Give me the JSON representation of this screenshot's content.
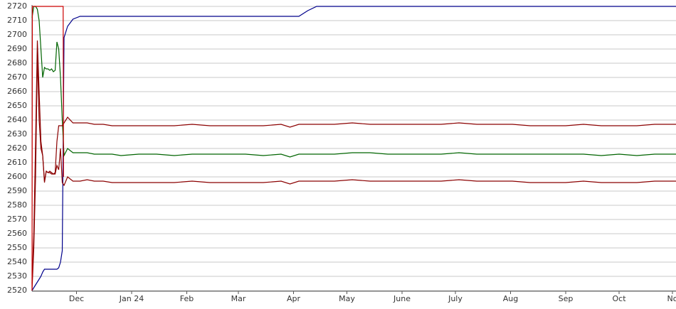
{
  "chart_data": {
    "type": "line",
    "x": [
      0,
      1,
      2,
      3,
      4,
      5,
      6,
      7,
      8,
      9,
      10,
      11,
      12,
      13,
      14,
      15,
      16,
      17,
      18,
      20,
      23,
      27,
      31,
      35,
      40,
      45,
      50,
      60,
      70,
      80,
      90,
      100,
      110,
      120,
      130,
      140,
      145,
      150,
      155,
      160,
      170,
      180,
      190,
      200,
      210,
      220,
      230,
      240,
      250,
      260,
      270,
      280,
      290,
      300,
      310,
      320,
      330,
      340,
      350,
      362
    ],
    "series": [
      {
        "color": "#00008b",
        "values": [
          2520,
          2522,
          2524,
          2526,
          2528,
          2530,
          2533,
          2535,
          2535,
          2535,
          2535,
          2535,
          2535,
          2535,
          2535,
          2536,
          2540,
          2548,
          2698,
          2706,
          2711,
          2713,
          2713,
          2713,
          2713,
          2713,
          2713,
          2713,
          2713,
          2713,
          2713,
          2713,
          2713,
          2713,
          2713,
          2713,
          2713,
          2713,
          2717,
          2720,
          2720,
          2720,
          2720,
          2720,
          2720,
          2720,
          2720,
          2720,
          2720,
          2720,
          2720,
          2720,
          2720,
          2720,
          2720,
          2720,
          2720,
          2720,
          2720,
          2720
        ]
      },
      {
        "color": "#006400",
        "values": [
          2712,
          2720,
          2720,
          2718,
          2710,
          2690,
          2670,
          2677,
          2676,
          2676,
          2675,
          2676,
          2674,
          2675,
          2695,
          2690,
          2670,
          2640,
          2615,
          2620,
          2617,
          2617,
          2617,
          2616,
          2616,
          2616,
          2615,
          2616,
          2616,
          2615,
          2616,
          2616,
          2616,
          2616,
          2615,
          2616,
          2614,
          2616,
          2616,
          2616,
          2616,
          2617,
          2617,
          2616,
          2616,
          2616,
          2616,
          2617,
          2616,
          2616,
          2616,
          2616,
          2616,
          2616,
          2616,
          2615,
          2616,
          2615,
          2616,
          2616
        ]
      },
      {
        "color": "#8b0000",
        "values": [
          2525,
          2560,
          2625,
          2696,
          2660,
          2625,
          2615,
          2596,
          2604,
          2603,
          2604,
          2603,
          2602,
          2603,
          2625,
          2636,
          2636,
          2636,
          2638,
          2642,
          2638,
          2638,
          2638,
          2637,
          2637,
          2636,
          2636,
          2636,
          2636,
          2636,
          2637,
          2636,
          2636,
          2636,
          2636,
          2637,
          2635,
          2637,
          2637,
          2637,
          2637,
          2638,
          2637,
          2637,
          2637,
          2637,
          2637,
          2638,
          2637,
          2637,
          2637,
          2636,
          2636,
          2636,
          2637,
          2636,
          2636,
          2636,
          2637,
          2637
        ]
      },
      {
        "color": "#8b0000",
        "values": [
          2520,
          2550,
          2600,
          2686,
          2640,
          2620,
          2615,
          2597,
          2604,
          2603,
          2603,
          2602,
          2602,
          2602,
          2608,
          2605,
          2620,
          2596,
          2594,
          2600,
          2597,
          2597,
          2598,
          2597,
          2597,
          2596,
          2596,
          2596,
          2596,
          2596,
          2597,
          2596,
          2596,
          2596,
          2596,
          2597,
          2595,
          2597,
          2597,
          2597,
          2597,
          2598,
          2597,
          2597,
          2597,
          2597,
          2597,
          2598,
          2597,
          2597,
          2597,
          2596,
          2596,
          2596,
          2597,
          2596,
          2596,
          2596,
          2597,
          2597
        ]
      },
      {
        "color": "#cc0000",
        "x": [
          0,
          0.2,
          17.5,
          17.7
        ],
        "values": [
          2520,
          2720,
          2720,
          2600
        ]
      }
    ],
    "xlim": [
      0,
      362
    ],
    "xticks": [
      {
        "value": 25,
        "label": "Dec"
      },
      {
        "value": 56,
        "label": "Jan 24"
      },
      {
        "value": 87,
        "label": "Feb"
      },
      {
        "value": 116,
        "label": "Mar"
      },
      {
        "value": 147,
        "label": "Apr"
      },
      {
        "value": 177,
        "label": "May"
      },
      {
        "value": 208,
        "label": "June"
      },
      {
        "value": 238,
        "label": "July"
      },
      {
        "value": 269,
        "label": "Aug"
      },
      {
        "value": 300,
        "label": "Sep"
      },
      {
        "value": 330,
        "label": "Oct"
      },
      {
        "value": 360,
        "label": "No"
      }
    ],
    "ylim": [
      2520,
      2720
    ],
    "yticks": [
      2520,
      2530,
      2540,
      2550,
      2560,
      2570,
      2580,
      2590,
      2600,
      2610,
      2620,
      2630,
      2640,
      2650,
      2660,
      2670,
      2680,
      2690,
      2700,
      2710,
      2720
    ],
    "grid": true
  }
}
